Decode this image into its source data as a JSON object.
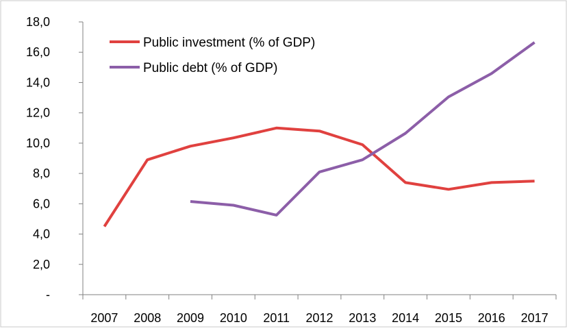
{
  "chart_data": {
    "type": "line",
    "categories": [
      "2007",
      "2008",
      "2009",
      "2010",
      "2011",
      "2012",
      "2013",
      "2014",
      "2015",
      "2016",
      "2017"
    ],
    "ylim": [
      0,
      18
    ],
    "yticks": [
      {
        "value": 0,
        "label": "-"
      },
      {
        "value": 2,
        "label": "2,0"
      },
      {
        "value": 4,
        "label": "4,0"
      },
      {
        "value": 6,
        "label": "6,0"
      },
      {
        "value": 8,
        "label": "8,0"
      },
      {
        "value": 10,
        "label": "10,0"
      },
      {
        "value": 12,
        "label": "12,0"
      },
      {
        "value": 14,
        "label": "14,0"
      },
      {
        "value": 16,
        "label": "16,0"
      },
      {
        "value": 18,
        "label": "18,0"
      }
    ],
    "grid": false,
    "legend_position": "top-left",
    "series": [
      {
        "name": "Public investment (% of GDP)",
        "color": "#e0413f",
        "values": [
          4.5,
          8.9,
          9.8,
          10.35,
          11.0,
          10.8,
          9.9,
          7.4,
          6.95,
          7.4,
          7.5
        ]
      },
      {
        "name": "Public debt (% of GDP)",
        "color": "#8c5ea8",
        "values": [
          null,
          null,
          6.15,
          5.9,
          5.25,
          8.1,
          8.9,
          10.65,
          13.05,
          14.6,
          16.65
        ]
      }
    ]
  }
}
